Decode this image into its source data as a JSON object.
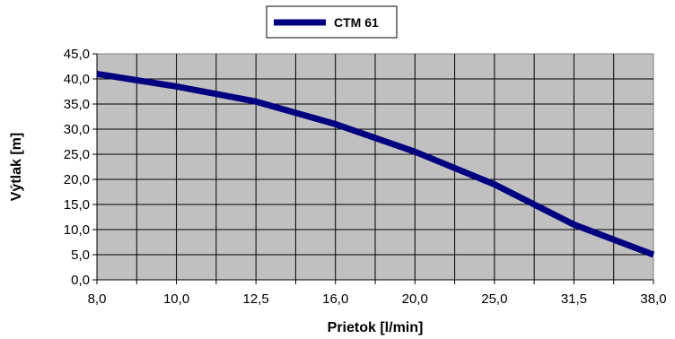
{
  "chart_data": {
    "type": "line",
    "xlabel": "Prietok [l/min]",
    "ylabel": "Výtlak [m]",
    "categories": [
      "8,0",
      "10,0",
      "12,5",
      "16,0",
      "20,0",
      "25,0",
      "31,5",
      "38,0"
    ],
    "series": [
      {
        "name": "CTM 61",
        "color": "#000080",
        "values": [
          41.0,
          38.5,
          35.5,
          31.0,
          25.5,
          19.0,
          11.0,
          5.0
        ]
      }
    ],
    "ylim": [
      0,
      45
    ],
    "ytick_step": 5,
    "ytick_labels": [
      "0,0",
      "5,0",
      "10,0",
      "15,0",
      "20,0",
      "25,0",
      "30,0",
      "35,0",
      "40,0",
      "45,0"
    ],
    "plot_background": "#c0c0c0",
    "grid": true,
    "legend_position": "top-center"
  }
}
